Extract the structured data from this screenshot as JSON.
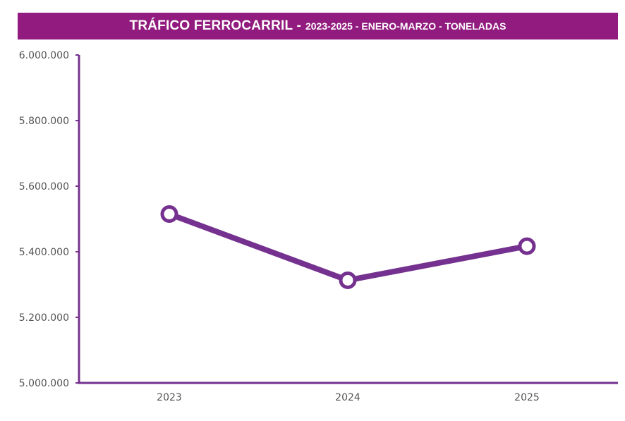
{
  "title": {
    "main": "TRÁFICO FERROCARRIL -",
    "sub": "2023-2025 - ENERO-MARZO - TONELADAS"
  },
  "colors": {
    "title_bg": "#911b7e",
    "line": "#75318f",
    "axis": "#75318f",
    "marker_fill": "#ffffff"
  },
  "chart_data": {
    "type": "line",
    "title": "TRÁFICO FERROCARRIL - 2023-2025 - ENERO-MARZO - TONELADAS",
    "categories": [
      "2023",
      "2024",
      "2025"
    ],
    "series": [
      {
        "values": [
          5515000,
          5313000,
          5417000
        ]
      }
    ],
    "ylim": [
      5000000,
      6000000
    ],
    "yticks": [
      5000000,
      5200000,
      5400000,
      5600000,
      5800000,
      6000000
    ],
    "ytick_labels": [
      "5.000.000",
      "5.200.000",
      "5.400.000",
      "5.600.000",
      "5.800.000",
      "6.000.000"
    ],
    "xlabel": "",
    "ylabel": "",
    "grid": false,
    "legend": "none"
  }
}
